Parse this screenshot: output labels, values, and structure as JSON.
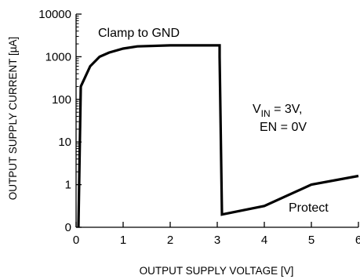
{
  "chart_data": {
    "type": "line",
    "xlabel": "OUTPUT SUPPLY VOLTAGE [V]",
    "ylabel": "OUTPUT SUPPLY CURRENT [µA]",
    "xlim": [
      0,
      6
    ],
    "ylim": [
      0,
      10000
    ],
    "yscale": "log",
    "grid": false,
    "x_ticks": [
      0,
      1,
      2,
      3,
      4,
      5,
      6
    ],
    "x_tick_labels": [
      "0",
      "1",
      "2",
      "3",
      "4",
      "5",
      "6"
    ],
    "y_ticks": [
      0,
      1,
      10,
      100,
      1000,
      10000
    ],
    "y_tick_labels": [
      "0",
      "1",
      "10",
      "100",
      "1000",
      "10000"
    ],
    "series": [
      {
        "x": [
          0.05,
          0.1,
          0.3,
          0.5,
          0.7,
          1.0,
          1.3,
          2.0,
          3.05,
          3.05,
          3.1,
          4.0,
          5.0,
          6.0
        ],
        "y": [
          0,
          200,
          600,
          1000,
          1250,
          1550,
          1750,
          1850,
          1850,
          1000,
          0.3,
          0.5,
          1.0,
          1.6
        ]
      }
    ],
    "annotations": {
      "clamp": "Clamp to GND",
      "vin_prefix": "V",
      "vin_sub": "IN",
      "vin_suffix": " = 3V,",
      "en": "EN = 0V",
      "protect": "Protect"
    }
  }
}
